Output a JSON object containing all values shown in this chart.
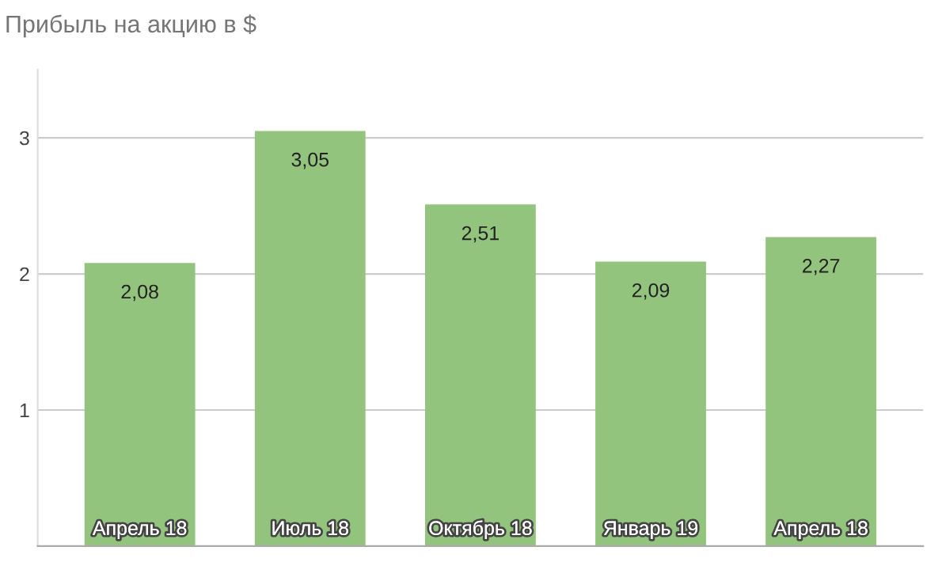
{
  "chart_data": {
    "type": "bar",
    "title": "Прибыль на акцию в $",
    "categories": [
      "Апрель 18",
      "Июль 18",
      "Октябрь 18",
      "Январь 19",
      "Апрель 18"
    ],
    "values": [
      2.08,
      3.05,
      2.51,
      2.09,
      2.27
    ],
    "value_labels": [
      "2,08",
      "3,05",
      "2,51",
      "2,09",
      "2,27"
    ],
    "color": "#93c47d",
    "ylim": [
      0,
      3.5
    ],
    "yticks": [
      1,
      2,
      3
    ],
    "grid": "y"
  }
}
